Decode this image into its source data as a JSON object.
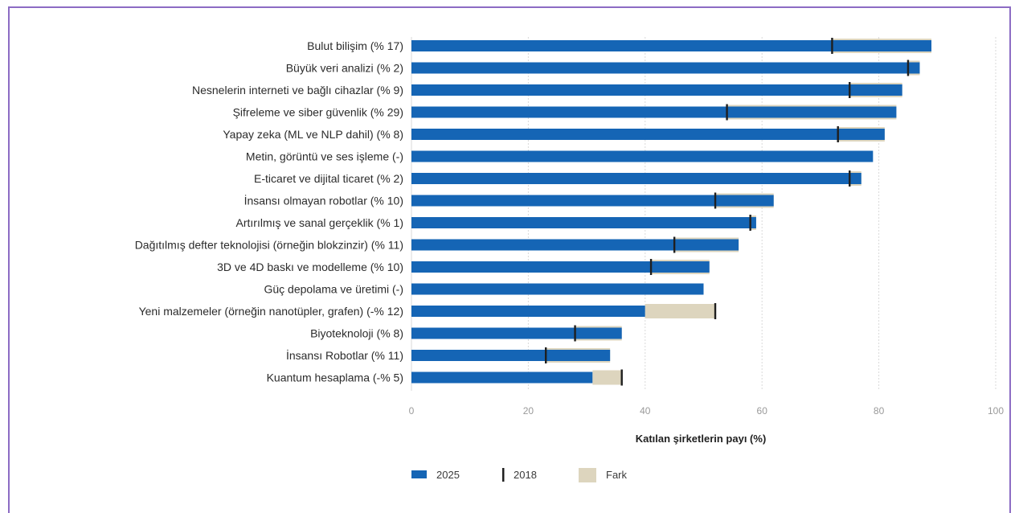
{
  "chart_data": {
    "type": "bar",
    "orientation": "horizontal",
    "xlabel": "Katılan şirketlerin payı (%)",
    "xlim": [
      0,
      100
    ],
    "xticks": [
      0,
      20,
      40,
      60,
      80,
      100
    ],
    "grid": true,
    "legend_position": "bottom",
    "categories": [
      "Bulut bilişim (% 17)",
      "Büyük veri analizi (% 2)",
      "Nesnelerin interneti ve bağlı cihazlar (% 9)",
      "Şifreleme ve siber güvenlik (% 29)",
      "Yapay zeka (ML ve NLP dahil) (% 8)",
      "Metin, görüntü ve ses işleme (-)",
      "E-ticaret ve dijital ticaret (% 2)",
      "İnsansı olmayan robotlar (% 10)",
      "Artırılmış ve sanal gerçeklik (% 1)",
      "Dağıtılmış defter teknolojisi (örneğin blokzinzir) (% 11)",
      "3D ve 4D baskı ve modelleme (% 10)",
      "Güç depolama ve üretimi (-)",
      "Yeni malzemeler (örneğin nanotüpler, grafen) (-% 12)",
      "Biyoteknoloji (% 8)",
      "İnsansı Robotlar (% 11)",
      "Kuantum hesaplama (-% 5)"
    ],
    "series": [
      {
        "name": "2025",
        "values": [
          89,
          87,
          84,
          83,
          81,
          79,
          77,
          62,
          59,
          56,
          51,
          50,
          40,
          36,
          34,
          31
        ]
      },
      {
        "name": "2018",
        "values": [
          72,
          85,
          75,
          54,
          73,
          null,
          75,
          52,
          58,
          45,
          41,
          null,
          52,
          28,
          23,
          36
        ]
      },
      {
        "name": "Fark"
      }
    ],
    "colors": {
      "bar_2025": "#1565b5",
      "marker_2018": "#1f1f1f",
      "fark": "#ddd5be",
      "grid": "#d9d9d9",
      "frame": "#8c6cc4"
    }
  }
}
